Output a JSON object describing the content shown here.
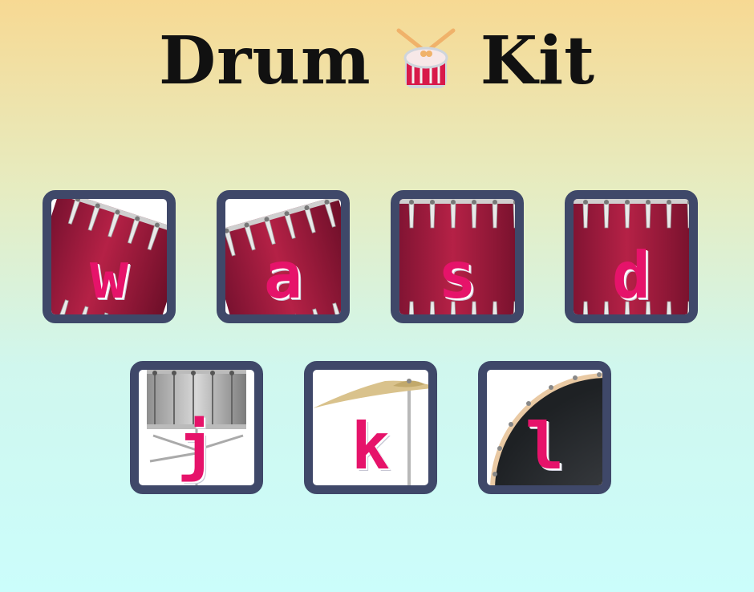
{
  "header": {
    "title_left": "Drum",
    "title_right": "Kit",
    "icon": "drum-icon"
  },
  "keys": [
    {
      "letter": "w",
      "instrument": "tom-tilted-left-icon"
    },
    {
      "letter": "a",
      "instrument": "tom-tilted-right-icon"
    },
    {
      "letter": "s",
      "instrument": "tom-icon"
    },
    {
      "letter": "d",
      "instrument": "tom-icon"
    },
    {
      "letter": "j",
      "instrument": "snare-drum-icon"
    },
    {
      "letter": "k",
      "instrument": "cymbal-icon"
    },
    {
      "letter": "l",
      "instrument": "bass-drum-icon"
    }
  ],
  "colors": {
    "accent": "#e6136a",
    "frame": "#3f4869",
    "drum_red": "#9b1a3a"
  }
}
